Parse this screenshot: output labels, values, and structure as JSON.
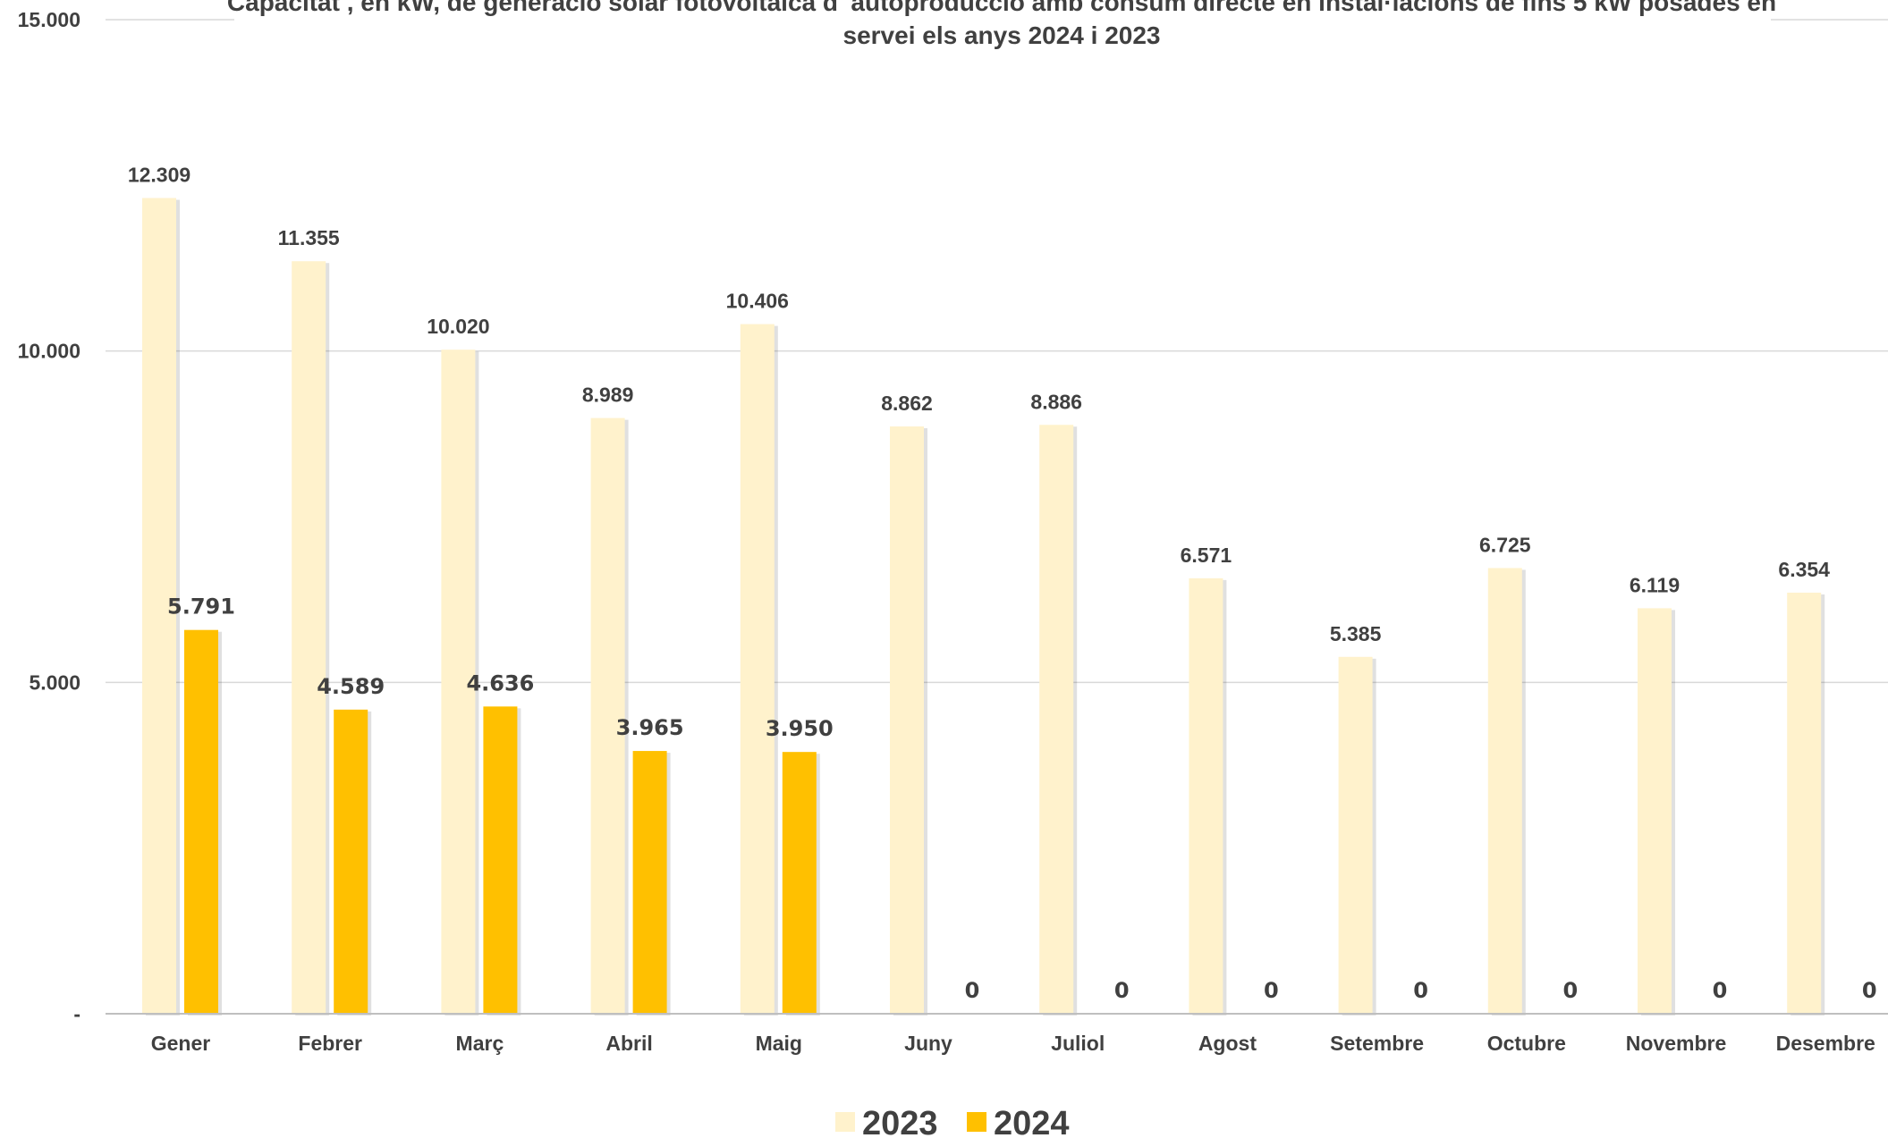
{
  "chart_data": {
    "type": "bar",
    "title_lines": [
      "Capacitat , en kW, de generació solar fotovoltaica d' autoproducció amb consum directe en instal·lacions de fins 5 kW posades en",
      "servei els anys 2024 i 2023"
    ],
    "categories": [
      "Gener",
      "Febrer",
      "Març",
      "Abril",
      "Maig",
      "Juny",
      "Juliol",
      "Agost",
      "Setembre",
      "Octubre",
      "Novembre",
      "Desembre"
    ],
    "series": [
      {
        "name": "2023",
        "color": "#FFF2CC",
        "values": [
          12309,
          11355,
          10020,
          8989,
          10406,
          8862,
          8886,
          6571,
          5385,
          6725,
          6119,
          6354
        ],
        "labels": [
          "12.309",
          "11.355",
          "10.020",
          "8.989",
          "10.406",
          "8.862",
          "8.886",
          "6.571",
          "5.385",
          "6.725",
          "6.119",
          "6.354"
        ]
      },
      {
        "name": "2024",
        "color": "#FFC000",
        "values": [
          5791,
          4589,
          4636,
          3965,
          3950,
          0,
          0,
          0,
          0,
          0,
          0,
          0
        ],
        "labels": [
          "5.791",
          "4.589",
          "4.636",
          "3.965",
          "3.950",
          "0",
          "0",
          "0",
          "0",
          "0",
          "0",
          "0"
        ]
      }
    ],
    "ylim": [
      0,
      15000
    ],
    "yticks": [
      0,
      5000,
      10000,
      15000
    ],
    "ytick_labels": [
      "-",
      "5.000",
      "10.000",
      "15.000"
    ],
    "grid": true,
    "legend_position": "bottom",
    "gridline_color": "#D9D9D9",
    "text_color": "#404040"
  }
}
